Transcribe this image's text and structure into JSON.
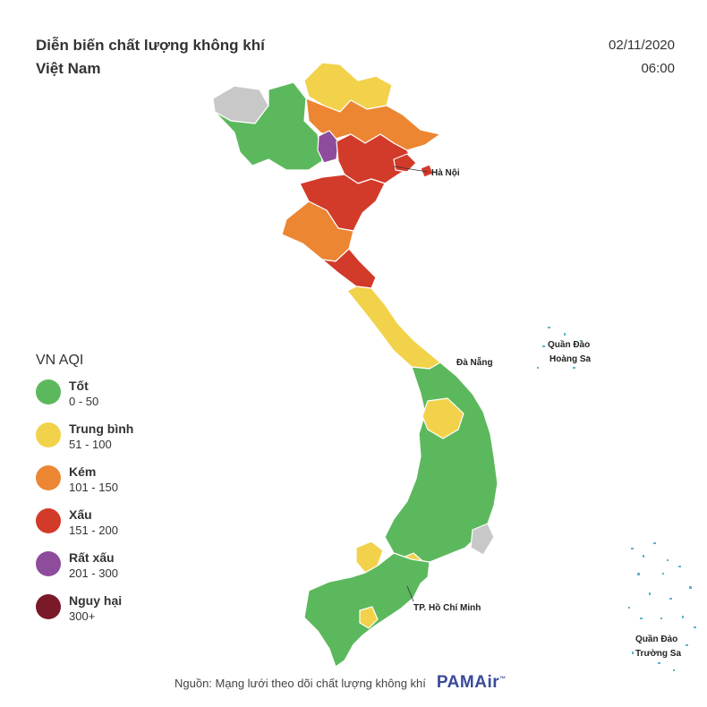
{
  "header": {
    "title_line1": "Diễn biến chất lượng không khí",
    "title_line2": "Việt Nam",
    "date": "02/11/2020",
    "time": "06:00"
  },
  "legend": {
    "title": "VN AQI",
    "items": [
      {
        "label": "Tốt",
        "range": "0 - 50",
        "color": "#5cb85c"
      },
      {
        "label": "Trung bình",
        "range": "51 - 100",
        "color": "#f2d24b"
      },
      {
        "label": "Kém",
        "range": "101 - 150",
        "color": "#ec8633"
      },
      {
        "label": "Xấu",
        "range": "151 - 200",
        "color": "#d23a2a"
      },
      {
        "label": "Rất xấu",
        "range": "201 - 300",
        "color": "#8e4c9c"
      },
      {
        "label": "Nguy hại",
        "range": "300+",
        "color": "#7a1a28"
      }
    ]
  },
  "map_labels": {
    "hanoi": "Hà Nội",
    "danang": "Đà Nẵng",
    "hcm": "TP. Hồ Chí Minh",
    "hoangsa_1": "Quần Đảo",
    "hoangsa_2": "Hoàng Sa",
    "truongsa_1": "Quần Đảo",
    "truongsa_2": "Trường Sa"
  },
  "footer": {
    "source": "Nguồn: Mạng lưới theo dõi chất lượng không khí",
    "brand": "PAMAir",
    "tm": "™"
  },
  "colors": {
    "good": "#5cb85c",
    "moderate": "#f2d24b",
    "poor": "#ec8633",
    "bad": "#d23a2a",
    "very_bad": "#8e4c9c",
    "hazardous": "#7a1a28",
    "no_data": "#c8c8c8",
    "islands": "#5fb3c9"
  }
}
